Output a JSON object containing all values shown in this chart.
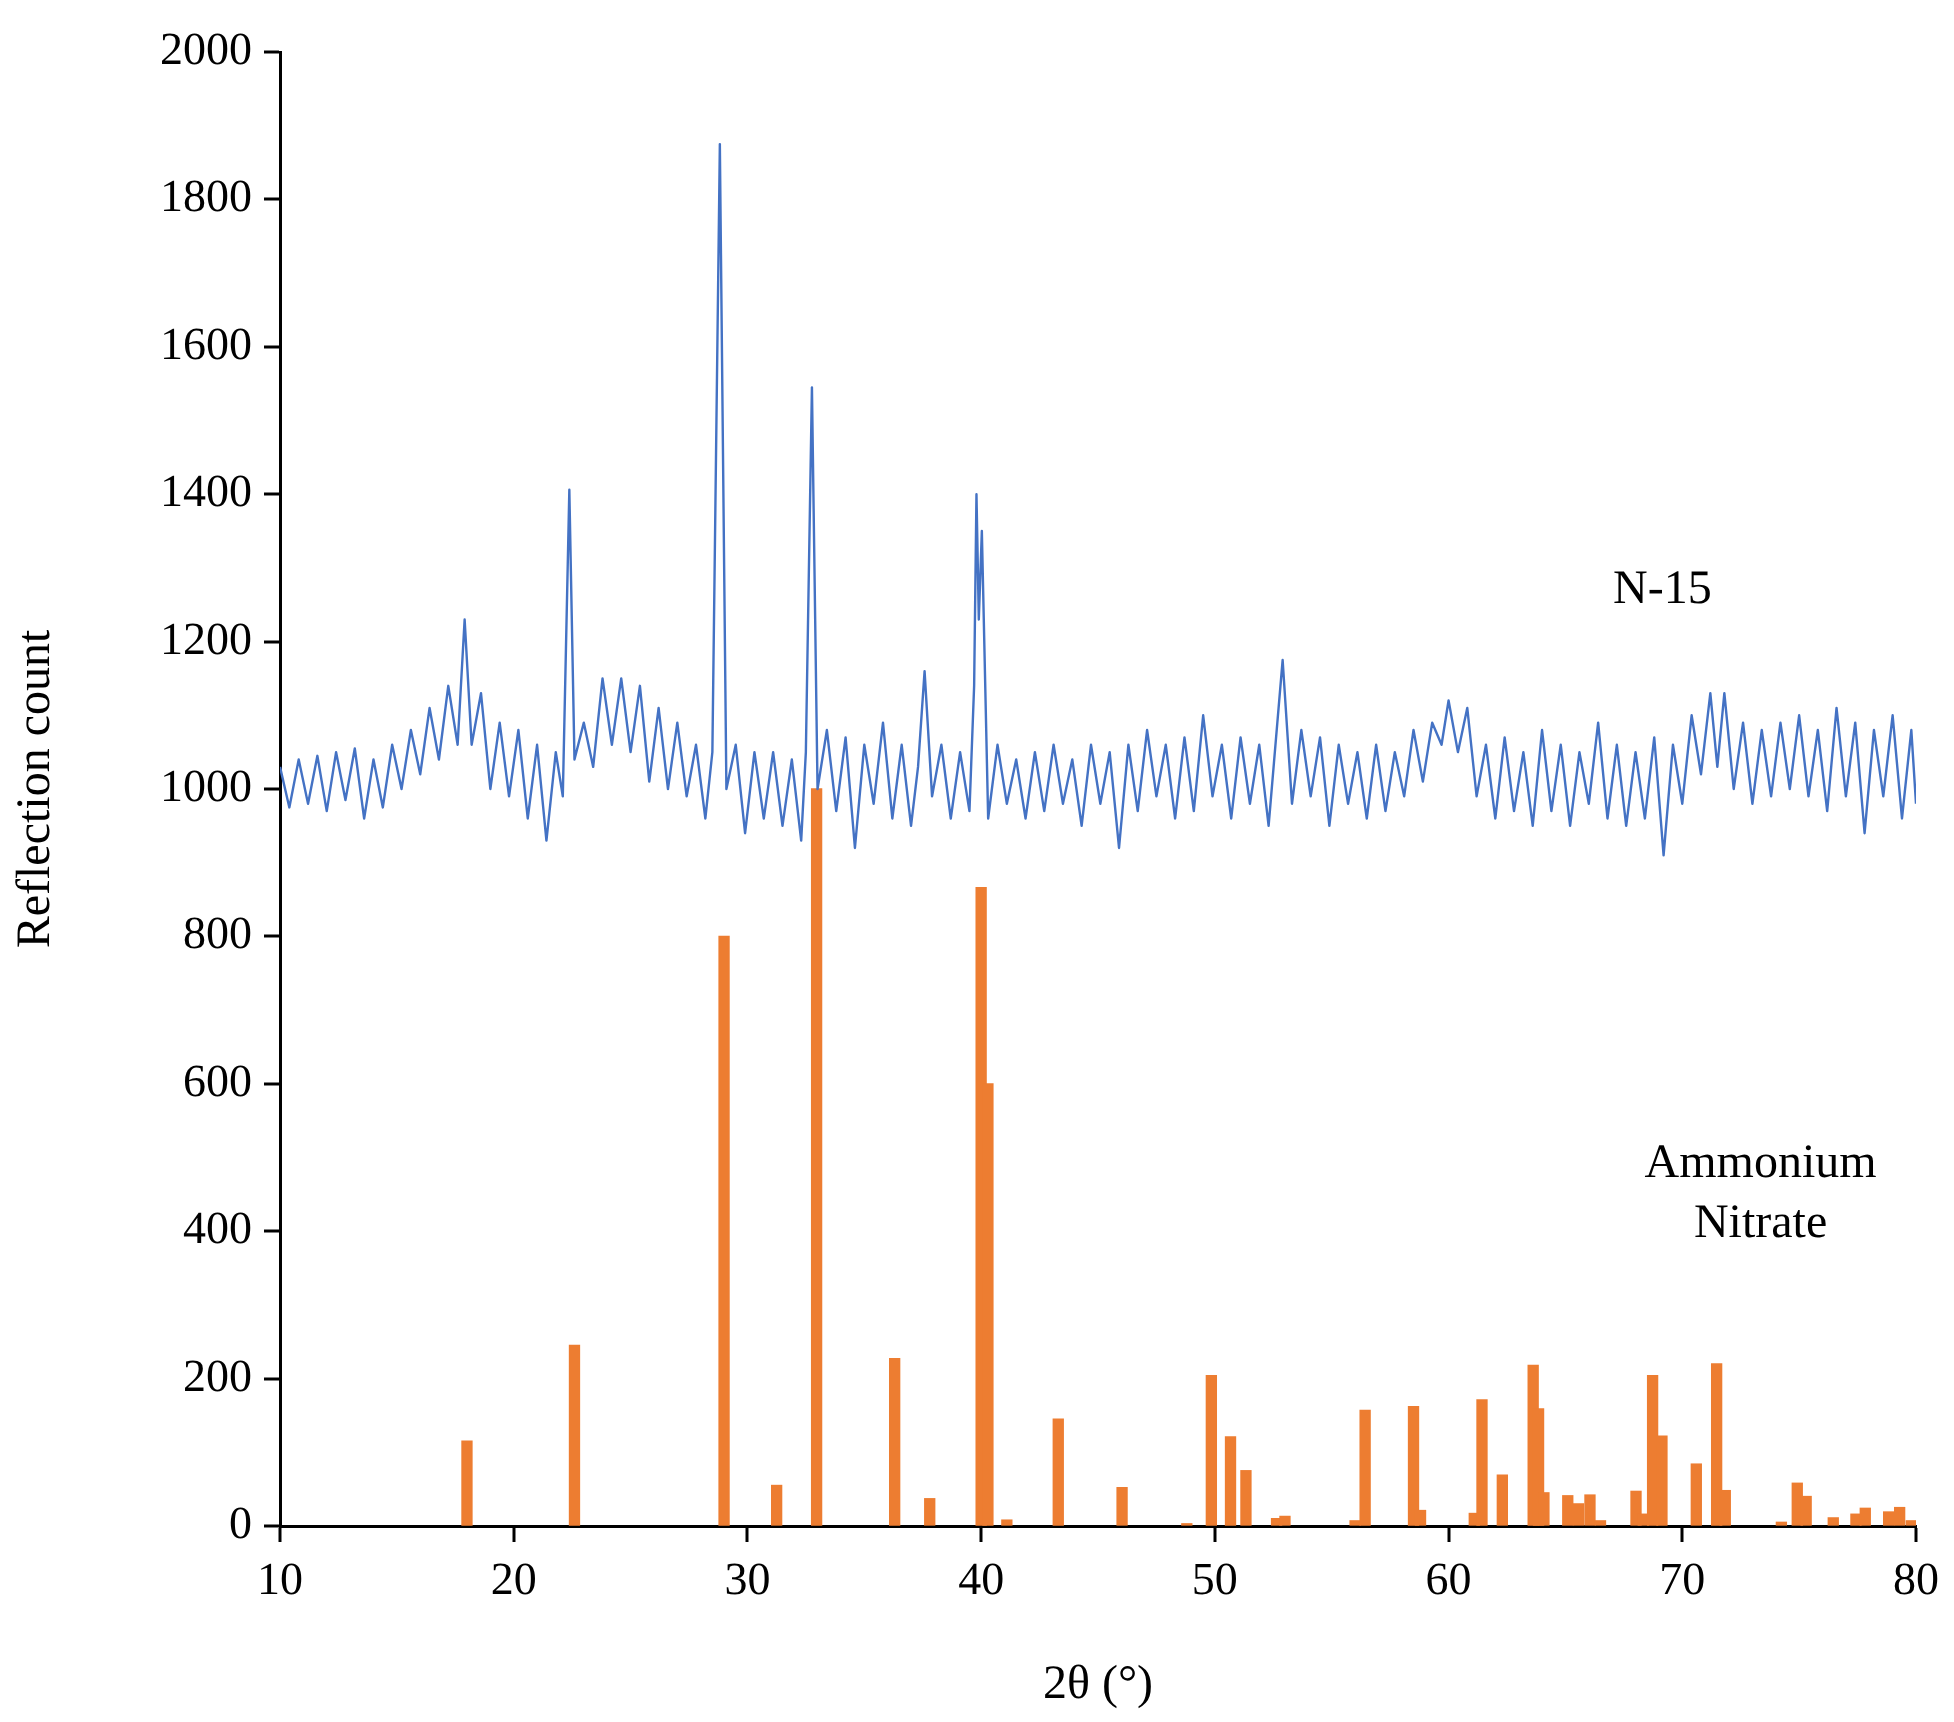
{
  "chart_data": {
    "type": "bar",
    "xlabel": "2θ (°)",
    "ylabel": "Reflection count",
    "xlim": [
      10,
      80
    ],
    "ylim": [
      0,
      2000
    ],
    "xticks": [
      10,
      20,
      30,
      40,
      50,
      60,
      70,
      80
    ],
    "yticks": [
      0,
      200,
      400,
      600,
      800,
      1000,
      1200,
      1400,
      1600,
      1800,
      2000
    ],
    "marker": "none",
    "line_style": "solid",
    "series": [
      {
        "name": "N-15",
        "type": "line",
        "color": "#4472c4",
        "x": [
          10.0,
          10.4,
          10.8,
          11.2,
          11.6,
          12.0,
          12.4,
          12.8,
          13.2,
          13.6,
          14.0,
          14.4,
          14.8,
          15.2,
          15.6,
          16.0,
          16.4,
          16.8,
          17.2,
          17.6,
          17.9,
          18.2,
          18.6,
          19.0,
          19.4,
          19.8,
          20.2,
          20.6,
          21.0,
          21.4,
          21.8,
          22.1,
          22.38,
          22.6,
          23.0,
          23.4,
          23.8,
          24.2,
          24.6,
          25.0,
          25.4,
          25.8,
          26.2,
          26.6,
          27.0,
          27.4,
          27.8,
          28.2,
          28.5,
          28.82,
          29.1,
          29.5,
          29.9,
          30.3,
          30.7,
          31.1,
          31.5,
          31.9,
          32.3,
          32.5,
          32.76,
          33.0,
          33.4,
          33.8,
          34.2,
          34.6,
          35.0,
          35.4,
          35.8,
          36.2,
          36.6,
          37.0,
          37.3,
          37.58,
          37.9,
          38.3,
          38.7,
          39.1,
          39.5,
          39.7,
          39.8,
          39.9,
          40.03,
          40.3,
          40.7,
          41.1,
          41.5,
          41.9,
          42.3,
          42.7,
          43.1,
          43.5,
          43.9,
          44.3,
          44.7,
          45.1,
          45.5,
          45.9,
          46.3,
          46.7,
          47.1,
          47.5,
          47.9,
          48.3,
          48.7,
          49.1,
          49.5,
          49.9,
          50.3,
          50.7,
          51.1,
          51.5,
          51.9,
          52.3,
          52.9,
          53.3,
          53.7,
          54.1,
          54.5,
          54.9,
          55.3,
          55.7,
          56.1,
          56.5,
          56.9,
          57.3,
          57.7,
          58.1,
          58.5,
          58.9,
          59.3,
          59.7,
          60.0,
          60.4,
          60.8,
          61.2,
          61.6,
          62.0,
          62.4,
          62.8,
          63.2,
          63.6,
          64.0,
          64.4,
          64.8,
          65.2,
          65.6,
          66.0,
          66.4,
          66.8,
          67.2,
          67.6,
          68.0,
          68.4,
          68.8,
          69.2,
          69.6,
          70.0,
          70.4,
          70.8,
          71.2,
          71.5,
          71.8,
          72.2,
          72.6,
          73.0,
          73.4,
          73.8,
          74.2,
          74.6,
          75.0,
          75.4,
          75.8,
          76.2,
          76.6,
          77.0,
          77.4,
          77.8,
          78.2,
          78.6,
          79.0,
          79.4,
          79.8,
          80.0
        ],
        "values": [
          1030,
          975,
          1040,
          980,
          1045,
          970,
          1050,
          985,
          1055,
          960,
          1040,
          975,
          1060,
          1000,
          1080,
          1020,
          1110,
          1040,
          1140,
          1060,
          1230,
          1060,
          1130,
          1000,
          1090,
          990,
          1080,
          960,
          1060,
          930,
          1050,
          990,
          1406,
          1040,
          1090,
          1030,
          1150,
          1060,
          1150,
          1050,
          1140,
          1010,
          1110,
          1000,
          1090,
          990,
          1060,
          960,
          1050,
          1875,
          1000,
          1060,
          940,
          1050,
          960,
          1050,
          950,
          1040,
          930,
          1050,
          1545,
          1000,
          1080,
          970,
          1070,
          920,
          1060,
          980,
          1090,
          960,
          1060,
          950,
          1030,
          1160,
          990,
          1060,
          960,
          1050,
          970,
          1140,
          1400,
          1230,
          1350,
          960,
          1060,
          980,
          1040,
          960,
          1050,
          970,
          1060,
          980,
          1040,
          950,
          1060,
          980,
          1050,
          920,
          1060,
          970,
          1080,
          990,
          1060,
          960,
          1070,
          970,
          1100,
          990,
          1060,
          960,
          1070,
          980,
          1060,
          950,
          1175,
          980,
          1080,
          990,
          1070,
          950,
          1060,
          980,
          1050,
          960,
          1060,
          970,
          1050,
          990,
          1080,
          1010,
          1090,
          1060,
          1120,
          1050,
          1110,
          990,
          1060,
          960,
          1070,
          970,
          1050,
          950,
          1080,
          970,
          1060,
          950,
          1050,
          980,
          1090,
          960,
          1060,
          950,
          1050,
          960,
          1070,
          910,
          1060,
          980,
          1100,
          1020,
          1130,
          1030,
          1130,
          1000,
          1090,
          980,
          1080,
          990,
          1090,
          1000,
          1100,
          990,
          1080,
          970,
          1110,
          990,
          1090,
          940,
          1080,
          990,
          1100,
          960,
          1080,
          980
        ]
      },
      {
        "name": "Ammonium Nitrate",
        "color": "#ed7d31",
        "x": [
          18.0,
          22.6,
          29.0,
          31.25,
          32.96,
          36.3,
          37.8,
          40.0,
          40.29,
          41.1,
          43.3,
          46.03,
          48.8,
          49.85,
          50.67,
          51.33,
          52.64,
          53.0,
          56.0,
          56.43,
          58.5,
          58.8,
          61.1,
          61.43,
          62.3,
          63.62,
          63.85,
          64.08,
          65.1,
          65.56,
          66.05,
          66.5,
          68.02,
          68.33,
          68.73,
          69.13,
          70.6,
          71.47,
          71.84,
          74.24,
          74.92,
          75.3,
          76.46,
          77.43,
          77.83,
          78.83,
          79.3,
          79.8
        ],
        "values": [
          115,
          245,
          800,
          55,
          1000,
          227,
          37,
          866,
          600,
          8,
          145,
          52,
          3,
          204,
          121,
          75,
          10,
          13,
          7,
          157,
          162,
          21,
          17,
          171,
          69,
          218,
          159,
          45,
          41,
          30,
          42,
          7,
          47,
          16,
          204,
          122,
          84,
          220,
          48,
          5,
          58,
          40,
          11,
          16,
          24,
          19,
          25,
          7
        ]
      }
    ]
  }
}
